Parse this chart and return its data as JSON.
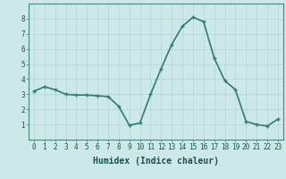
{
  "x": [
    0,
    1,
    2,
    3,
    4,
    5,
    6,
    7,
    8,
    9,
    10,
    11,
    12,
    13,
    14,
    15,
    16,
    17,
    18,
    19,
    20,
    21,
    22,
    23
  ],
  "y": [
    3.2,
    3.5,
    3.3,
    3.0,
    2.95,
    2.95,
    2.9,
    2.85,
    2.2,
    0.95,
    1.1,
    3.0,
    4.7,
    6.3,
    7.5,
    8.1,
    7.8,
    5.4,
    3.9,
    3.3,
    1.2,
    1.0,
    0.9,
    1.35
  ],
  "line_color": "#2e7d6e",
  "marker": "+",
  "marker_size": 3,
  "bg_color": "#cce8e8",
  "grid_color": "#b8d8d8",
  "xlabel": "Humidex (Indice chaleur)",
  "xlabel_fontsize": 7,
  "ylim": [
    0,
    9
  ],
  "xlim": [
    -0.5,
    23.5
  ],
  "yticks": [
    1,
    2,
    3,
    4,
    5,
    6,
    7,
    8
  ],
  "xticks": [
    0,
    1,
    2,
    3,
    4,
    5,
    6,
    7,
    8,
    9,
    10,
    11,
    12,
    13,
    14,
    15,
    16,
    17,
    18,
    19,
    20,
    21,
    22,
    23
  ],
  "tick_label_fontsize": 5.5,
  "line_width": 1.2
}
